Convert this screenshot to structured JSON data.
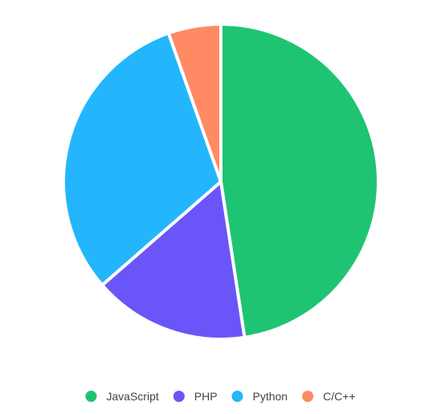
{
  "chart_data": {
    "type": "pie",
    "title": "",
    "categories": [
      "JavaScript",
      "PHP",
      "Python",
      "C/C++"
    ],
    "values": [
      47.6,
      16.0,
      31.0,
      5.4
    ],
    "colors": [
      "#1fc473",
      "#6a55f8",
      "#23b6fc",
      "#ff8a64"
    ],
    "legend": {
      "position": "bottom",
      "marker": "circle"
    }
  }
}
